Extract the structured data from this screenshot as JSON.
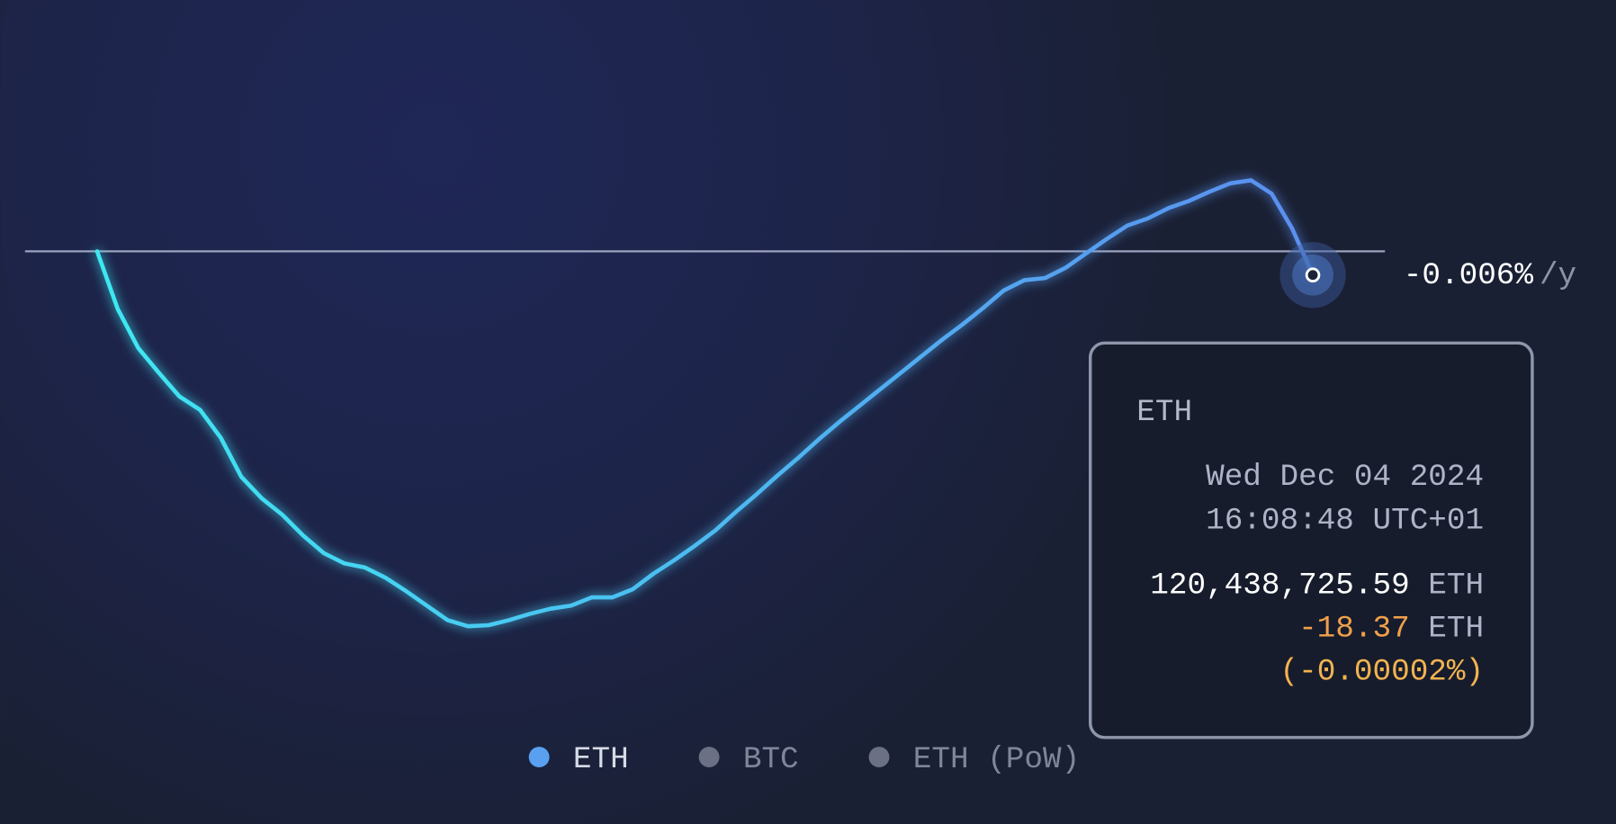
{
  "chart_data": {
    "type": "line",
    "series": [
      {
        "name": "ETH",
        "color": "#5aa0f0",
        "gradient": [
          "#3ee8f2",
          "#5b8ef0"
        ],
        "values": [
          0,
          -44.73,
          -75.08,
          -94.25,
          -112.62,
          -123.0,
          -144.56,
          -174.92,
          -191.69,
          -204.47,
          -220.44,
          -234.02,
          -242.01,
          -245.2,
          -253.19,
          -263.57,
          -274.75,
          -285.93,
          -290.73,
          -289.93,
          -285.93,
          -281.14,
          -277.15,
          -274.75,
          -268.36,
          -268.36,
          -261.97,
          -250.0,
          -239.61,
          -228.43,
          -216.45,
          -202.07,
          -188.49,
          -174.12,
          -160.54,
          -146.16,
          -132.58,
          -119.81,
          -107.03,
          -94.25,
          -81.47,
          -68.69,
          -56.71,
          -43.93,
          -30.35,
          -22.36,
          -20.77,
          -12.78,
          -1.6,
          9.58,
          19.97,
          25.56,
          33.55,
          39.14,
          46.32,
          52.71,
          55.11,
          44.73,
          17.57,
          -18.37
        ]
      }
    ],
    "ylim": [
      -300,
      100
    ],
    "baseline": 0,
    "rate_label": "-0.006%",
    "rate_unit": "/y",
    "tooltip": {
      "series": "ETH",
      "date": "Wed Dec 04 2024",
      "time": "16:08:48 UTC+01",
      "supply": "120,438,725.59",
      "unit": "ETH",
      "change": "-18.37",
      "change_pct": "(-0.00002%)"
    },
    "legend": [
      {
        "name": "ETH",
        "color": "#5aa0f0",
        "active": true
      },
      {
        "name": "BTC",
        "color": "#6b7085",
        "active": false
      },
      {
        "name": "ETH (PoW)",
        "color": "#6b7085",
        "active": false
      }
    ]
  }
}
